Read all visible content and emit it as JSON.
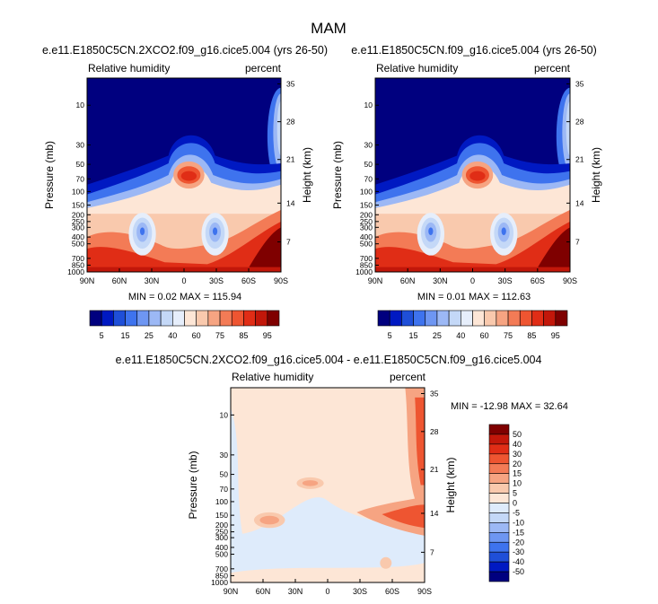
{
  "page_title": "MAM",
  "colors": {
    "contour_scale": [
      "#00007f",
      "#0019c2",
      "#1f4fd8",
      "#3e73ee",
      "#6e96f2",
      "#9cb8f5",
      "#c4d8f7",
      "#e6eefb",
      "#fde6d6",
      "#f9c9ad",
      "#f6a482",
      "#f37b56",
      "#ee5531",
      "#e02d16",
      "#c2170a",
      "#7f0000"
    ],
    "diff_scale": [
      "#00007f",
      "#0019c2",
      "#1f4fd8",
      "#3e73ee",
      "#6e96f2",
      "#9cb8f5",
      "#c4d8f7",
      "#deebfb",
      "#fde6d6",
      "#f9c9ad",
      "#f6a482",
      "#f37b56",
      "#ee5531",
      "#e02d16",
      "#c2170a",
      "#7f0000"
    ]
  },
  "panels": [
    {
      "title": "e.e11.E1850C5CN.2XCO2.f09_g16.cice5.004 (yrs 26-50)",
      "left_label": "Relative humidity",
      "right_label": "percent",
      "ylabel": "Pressure (mb)",
      "y2label": "Height (km)",
      "min_max": "MIN =  0.02  MAX = 115.94"
    },
    {
      "title": "e.e11.E1850C5CN.f09_g16.cice5.004 (yrs 26-50)",
      "left_label": "Relative humidity",
      "right_label": "percent",
      "ylabel": "Pressure (mb)",
      "y2label": "Height (km)",
      "min_max": "MIN =  0.01  MAX = 112.63"
    },
    {
      "title": "e.e11.E1850C5CN.2XCO2.f09_g16.cice5.004 - e.e11.E1850C5CN.f09_g16.cice5.004",
      "left_label": "Relative humidity",
      "right_label": "percent",
      "ylabel": "Pressure (mb)",
      "y2label": "Height (km)",
      "min_max": "MIN = -12.98  MAX =  32.64"
    }
  ],
  "chart_data": [
    {
      "type": "heatmap",
      "title": "e.e11.E1850C5CN.2XCO2.f09_g16.cice5.004 (yrs 26-50)",
      "x_ticks": [
        "90N",
        "60N",
        "30N",
        "0",
        "30S",
        "60S",
        "90S"
      ],
      "y_ticks": [
        "10",
        "30",
        "50",
        "70",
        "100",
        "150",
        "200",
        "250",
        "300",
        "400",
        "500",
        "700",
        "850",
        "1000"
      ],
      "y2_ticks": [
        "35",
        "28",
        "21",
        "14",
        "7"
      ],
      "ylabel": "Pressure (mb)",
      "y2label": "Height (km)",
      "colorbar_labels": [
        "5",
        "15",
        "25",
        "40",
        "60",
        "75",
        "85",
        "95"
      ],
      "min": 0.02,
      "max": 115.94
    },
    {
      "type": "heatmap",
      "title": "e.e11.E1850C5CN.f09_g16.cice5.004 (yrs 26-50)",
      "x_ticks": [
        "90N",
        "60N",
        "30N",
        "0",
        "30S",
        "60S",
        "90S"
      ],
      "y_ticks": [
        "10",
        "30",
        "50",
        "70",
        "100",
        "150",
        "200",
        "250",
        "300",
        "400",
        "500",
        "700",
        "850",
        "1000"
      ],
      "y2_ticks": [
        "35",
        "28",
        "21",
        "14",
        "7"
      ],
      "ylabel": "Pressure (mb)",
      "y2label": "Height (km)",
      "colorbar_labels": [
        "5",
        "15",
        "25",
        "40",
        "60",
        "75",
        "85",
        "95"
      ],
      "min": 0.01,
      "max": 112.63
    },
    {
      "type": "heatmap",
      "title": "e.e11.E1850C5CN.2XCO2.f09_g16.cice5.004 - e.e11.E1850C5CN.f09_g16.cice5.004",
      "x_ticks": [
        "90N",
        "60N",
        "30N",
        "0",
        "30S",
        "60S",
        "90S"
      ],
      "y_ticks": [
        "10",
        "30",
        "50",
        "70",
        "100",
        "150",
        "200",
        "250",
        "300",
        "400",
        "500",
        "700",
        "850",
        "1000"
      ],
      "y2_ticks": [
        "35",
        "28",
        "21",
        "14",
        "7"
      ],
      "ylabel": "Pressure (mb)",
      "y2label": "Height (km)",
      "colorbar_labels": [
        "50",
        "40",
        "30",
        "20",
        "15",
        "10",
        "5",
        "0",
        "-5",
        "-10",
        "-15",
        "-20",
        "-30",
        "-40",
        "-50"
      ],
      "min": -12.98,
      "max": 32.64
    }
  ]
}
